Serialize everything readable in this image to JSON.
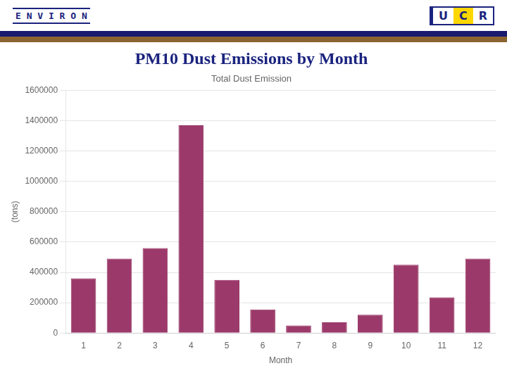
{
  "chart_data": {
    "type": "bar",
    "title": "PM10 Dust Emissions by Month",
    "subtitle": "Total Dust Emission",
    "x_label": "Month",
    "y_label": "(tons)",
    "categories": [
      "1",
      "2",
      "3",
      "4",
      "5",
      "6",
      "7",
      "8",
      "9",
      "10",
      "11",
      "12"
    ],
    "values": [
      360000,
      490000,
      560000,
      1370000,
      350000,
      155000,
      50000,
      70000,
      120000,
      450000,
      235000,
      490000
    ],
    "color": "#9B3A6A",
    "ylim": [
      0,
      1600000
    ],
    "yticks": [
      0,
      200000,
      400000,
      600000,
      800000,
      1000000,
      1200000,
      1400000,
      1600000
    ],
    "grid": true,
    "annotations": [
      "E N V I R O N",
      "U",
      "C",
      "R"
    ]
  }
}
